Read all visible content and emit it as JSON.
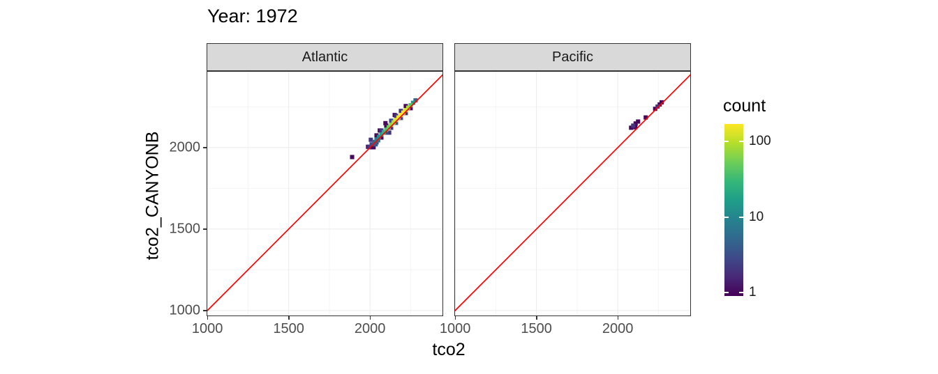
{
  "chart_data": {
    "type": "heatmap",
    "title": "Year: 1972",
    "xlabel": "tco2",
    "ylabel": "tco2_CANYONB",
    "xlim": [
      995,
      2450
    ],
    "ylim": [
      965,
      2470
    ],
    "x_ticks": [
      1000,
      1500,
      2000
    ],
    "y_ticks": [
      1000,
      1500,
      2000
    ],
    "x_minor_ticks": [
      1250,
      1750,
      2250
    ],
    "y_minor_ticks": [
      1250,
      1750,
      2250
    ],
    "grid": true,
    "binwidth": 26,
    "reference_line": {
      "slope": 1,
      "intercept": 0,
      "color": "#ff0000"
    },
    "legend": {
      "title": "count",
      "scale": "log10",
      "limits": [
        0.9,
        170
      ],
      "ticks": [
        1,
        10,
        100
      ],
      "position": "right"
    },
    "colors": {
      "strip_bg": "#d9d9d9",
      "panel_border": "#333333",
      "grid_major": "#ebebeb",
      "grid_minor": "#f5f5f5",
      "axis_text": "#4d4d4d",
      "viridis": [
        "#440154",
        "#482878",
        "#3e4a89",
        "#31688e",
        "#26828e",
        "#1f9e89",
        "#35b779",
        "#6ece58",
        "#b5de2b",
        "#fde725"
      ]
    },
    "facets": [
      {
        "label": "Atlantic",
        "bins": [
          [
            1995,
            2005,
            2
          ],
          [
            2010,
            2020,
            3
          ],
          [
            2025,
            2035,
            5
          ],
          [
            2040,
            2050,
            8
          ],
          [
            2055,
            2065,
            12
          ],
          [
            2070,
            2080,
            18
          ],
          [
            2085,
            2095,
            25
          ],
          [
            2100,
            2110,
            35
          ],
          [
            2115,
            2125,
            50
          ],
          [
            2130,
            2140,
            70
          ],
          [
            2145,
            2155,
            95
          ],
          [
            2160,
            2170,
            120
          ],
          [
            2175,
            2185,
            150
          ],
          [
            2190,
            2200,
            170
          ],
          [
            2205,
            2215,
            160
          ],
          [
            2220,
            2230,
            120
          ],
          [
            2235,
            2245,
            80
          ],
          [
            2250,
            2260,
            40
          ],
          [
            2265,
            2275,
            15
          ],
          [
            2280,
            2290,
            5
          ],
          [
            2010,
            2002,
            1
          ],
          [
            2040,
            2032,
            2
          ],
          [
            2070,
            2062,
            1
          ],
          [
            2100,
            2092,
            3
          ],
          [
            2130,
            2122,
            2
          ],
          [
            2160,
            2152,
            4
          ],
          [
            2190,
            2182,
            3
          ],
          [
            2220,
            2212,
            2
          ],
          [
            2250,
            2242,
            1
          ],
          [
            2040,
            2075,
            1
          ],
          [
            2070,
            2105,
            2
          ],
          [
            2100,
            2135,
            1
          ],
          [
            2130,
            2165,
            3
          ],
          [
            2160,
            2195,
            2
          ],
          [
            2190,
            2225,
            2
          ],
          [
            2220,
            2255,
            1
          ],
          [
            1890,
            1942,
            1
          ],
          [
            1988,
            2005,
            1
          ],
          [
            2005,
            2048,
            2
          ],
          [
            2022,
            2002,
            1
          ],
          [
            2060,
            2105,
            1
          ],
          [
            2118,
            2092,
            2
          ],
          [
            2152,
            2200,
            1
          ],
          [
            2095,
            2150,
            1
          ],
          [
            2035,
            2020,
            4
          ],
          [
            2050,
            2045,
            6
          ]
        ]
      },
      {
        "label": "Pacific",
        "bins": [
          [
            2082,
            2122,
            1
          ],
          [
            2095,
            2135,
            2
          ],
          [
            2108,
            2125,
            1
          ],
          [
            2110,
            2148,
            1
          ],
          [
            2125,
            2160,
            1
          ],
          [
            2172,
            2185,
            1
          ],
          [
            2230,
            2238,
            1
          ],
          [
            2245,
            2252,
            2
          ],
          [
            2258,
            2265,
            1
          ],
          [
            2270,
            2278,
            1
          ]
        ]
      }
    ]
  }
}
